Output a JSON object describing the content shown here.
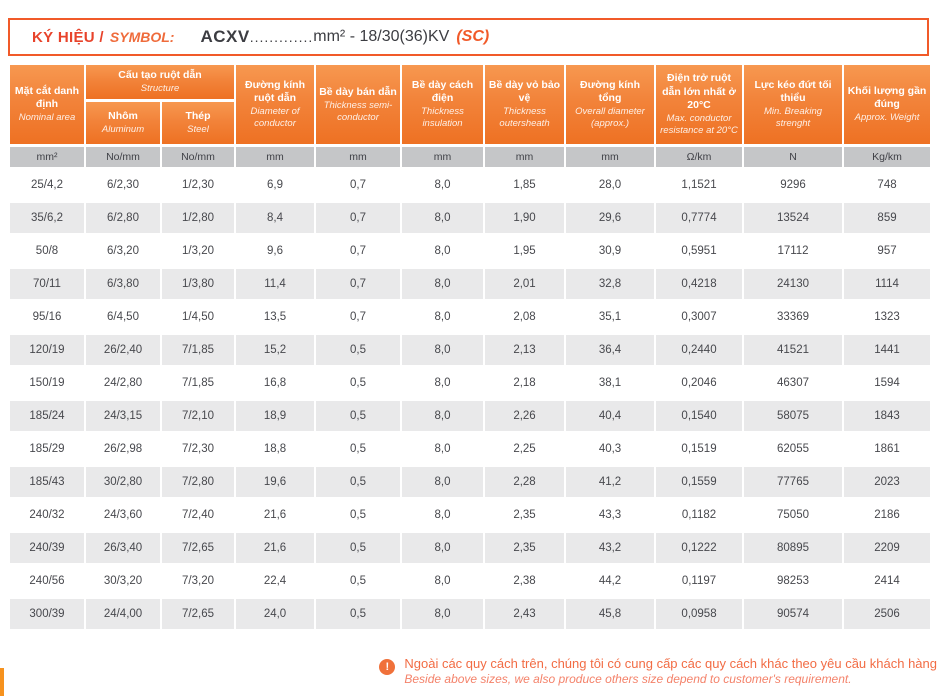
{
  "symbol_bar": {
    "label_vi": "KÝ HIỆU /",
    "label_en": "SYMBOL:",
    "code": "ACXV",
    "dots": ".............",
    "spec": "mm² - 18/30(36)KV",
    "suffix": "(SC)"
  },
  "colors": {
    "header_orange_top": "#F79850",
    "header_orange_bottom": "#EE7123",
    "accent_red": "#E8432B",
    "border_orange": "#F15A29",
    "unit_row_bg": "#C5C6C8",
    "alt_row_bg": "#E9E9EA",
    "text_dark": "#3C3D42",
    "note_orange": "#F26C44"
  },
  "table": {
    "col_nominal": {
      "vi": "Mặt cắt danh định",
      "en": "Nominal area"
    },
    "col_structure": {
      "vi": "Cấu tạo ruột dẫn",
      "en": "Structure"
    },
    "col_aluminum": {
      "vi": "Nhôm",
      "en": "Aluminum"
    },
    "col_steel": {
      "vi": "Thép",
      "en": "Steel"
    },
    "col_diameter": {
      "vi": "Đường kính ruột dẫn",
      "en": "Diameter of conductor"
    },
    "col_semicon": {
      "vi": "Bề dày bán dẫn",
      "en": "Thickness semi-conductor"
    },
    "col_insulation": {
      "vi": "Bề dày cách điện",
      "en": "Thickness insulation"
    },
    "col_outersheath": {
      "vi": "Bề dày vỏ bảo vệ",
      "en": "Thickness outersheath"
    },
    "col_overall": {
      "vi": "Đường kính tổng",
      "en": "Overall diameter (approx.)"
    },
    "col_resistance": {
      "vi": "Điện trở ruột dẫn lớn nhất ở 20°C",
      "en": "Max. conductor resistance at 20°C"
    },
    "col_breaking": {
      "vi": "Lực kéo đứt tối thiểu",
      "en": "Min. Breaking strenght"
    },
    "col_weight": {
      "vi": "Khối lượng gần đúng",
      "en": "Approx. Weight"
    },
    "units": [
      "mm²",
      "No/mm",
      "No/mm",
      "mm",
      "mm",
      "mm",
      "mm",
      "mm",
      "Ω/km",
      "N",
      "Kg/km"
    ],
    "rows": [
      [
        "25/4,2",
        "6/2,30",
        "1/2,30",
        "6,9",
        "0,7",
        "8,0",
        "1,85",
        "28,0",
        "1,1521",
        "9296",
        "748"
      ],
      [
        "35/6,2",
        "6/2,80",
        "1/2,80",
        "8,4",
        "0,7",
        "8,0",
        "1,90",
        "29,6",
        "0,7774",
        "13524",
        "859"
      ],
      [
        "50/8",
        "6/3,20",
        "1/3,20",
        "9,6",
        "0,7",
        "8,0",
        "1,95",
        "30,9",
        "0,5951",
        "17112",
        "957"
      ],
      [
        "70/11",
        "6/3,80",
        "1/3,80",
        "11,4",
        "0,7",
        "8,0",
        "2,01",
        "32,8",
        "0,4218",
        "24130",
        "1114"
      ],
      [
        "95/16",
        "6/4,50",
        "1/4,50",
        "13,5",
        "0,7",
        "8,0",
        "2,08",
        "35,1",
        "0,3007",
        "33369",
        "1323"
      ],
      [
        "120/19",
        "26/2,40",
        "7/1,85",
        "15,2",
        "0,5",
        "8,0",
        "2,13",
        "36,4",
        "0,2440",
        "41521",
        "1441"
      ],
      [
        "150/19",
        "24/2,80",
        "7/1,85",
        "16,8",
        "0,5",
        "8,0",
        "2,18",
        "38,1",
        "0,2046",
        "46307",
        "1594"
      ],
      [
        "185/24",
        "24/3,15",
        "7/2,10",
        "18,9",
        "0,5",
        "8,0",
        "2,26",
        "40,4",
        "0,1540",
        "58075",
        "1843"
      ],
      [
        "185/29",
        "26/2,98",
        "7/2,30",
        "18,8",
        "0,5",
        "8,0",
        "2,25",
        "40,3",
        "0,1519",
        "62055",
        "1861"
      ],
      [
        "185/43",
        "30/2,80",
        "7/2,80",
        "19,6",
        "0,5",
        "8,0",
        "2,28",
        "41,2",
        "0,1559",
        "77765",
        "2023"
      ],
      [
        "240/32",
        "24/3,60",
        "7/2,40",
        "21,6",
        "0,5",
        "8,0",
        "2,35",
        "43,3",
        "0,1182",
        "75050",
        "2186"
      ],
      [
        "240/39",
        "26/3,40",
        "7/2,65",
        "21,6",
        "0,5",
        "8,0",
        "2,35",
        "43,2",
        "0,1222",
        "80895",
        "2209"
      ],
      [
        "240/56",
        "30/3,20",
        "7/3,20",
        "22,4",
        "0,5",
        "8,0",
        "2,38",
        "44,2",
        "0,1197",
        "98253",
        "2414"
      ],
      [
        "300/39",
        "24/4,00",
        "7/2,65",
        "24,0",
        "0,5",
        "8,0",
        "2,43",
        "45,8",
        "0,0958",
        "90574",
        "2506"
      ]
    ]
  },
  "note": {
    "icon": "!",
    "vi": "Ngoài các quy cách trên, chúng tôi có cung cấp các quy cách khác theo yêu cầu khách hàng",
    "en": "Beside above sizes, we also produce others size depend to customer's requirement."
  }
}
